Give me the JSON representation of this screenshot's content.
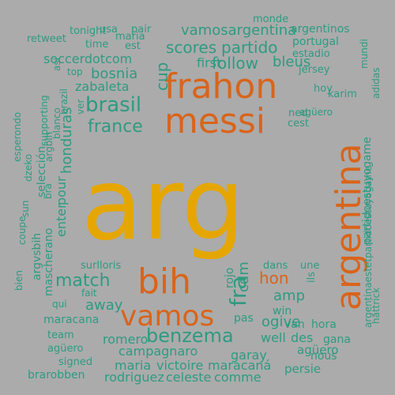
{
  "colors": {
    "background": "#ababab",
    "gold": "#e6a600",
    "orange": "#d9641b",
    "teal": "#2e9b82",
    "green": "#2f9a6a",
    "light": "#e9e9e9"
  },
  "words": [
    {
      "text": "arg",
      "color": "gold"
    },
    {
      "text": "argentina",
      "color": "orange"
    },
    {
      "text": "messi",
      "color": "orange"
    },
    {
      "text": "frahon",
      "color": "orange"
    },
    {
      "text": "bih",
      "color": "orange"
    },
    {
      "text": "vamos",
      "color": "orange"
    },
    {
      "text": "benzema",
      "color": "teal"
    },
    {
      "text": "brasil",
      "color": "teal"
    },
    {
      "text": "france",
      "color": "teal"
    },
    {
      "text": "match",
      "color": "teal"
    },
    {
      "text": "fra",
      "color": "teal"
    },
    {
      "text": "hon",
      "color": "orange"
    },
    {
      "text": "cdm",
      "color": "teal"
    },
    {
      "text": "amp",
      "color": "teal"
    },
    {
      "text": "ogive",
      "color": "teal"
    },
    {
      "text": "away",
      "color": "teal"
    },
    {
      "text": "follow",
      "color": "teal"
    },
    {
      "text": "scores",
      "color": "teal"
    },
    {
      "text": "partido",
      "color": "teal"
    },
    {
      "text": "vamosargentina",
      "color": "teal"
    },
    {
      "text": "soccerdotcom",
      "color": "teal"
    },
    {
      "text": "bosnia",
      "color": "teal"
    },
    {
      "text": "zabaleta",
      "color": "teal"
    },
    {
      "text": "cup",
      "color": "teal"
    },
    {
      "text": "first",
      "color": "teal"
    },
    {
      "text": "bleus",
      "color": "teal"
    },
    {
      "text": "honduras",
      "color": "teal"
    },
    {
      "text": "enter",
      "color": "teal"
    },
    {
      "text": "pour",
      "color": "teal"
    },
    {
      "text": "campagnaro",
      "color": "teal"
    },
    {
      "text": "garay",
      "color": "teal"
    },
    {
      "text": "romero",
      "color": "teal"
    },
    {
      "text": "maria",
      "color": "teal"
    },
    {
      "text": "victoire",
      "color": "teal"
    },
    {
      "text": "maracaná",
      "color": "teal"
    },
    {
      "text": "rodriguez",
      "color": "teal"
    },
    {
      "text": "celeste",
      "color": "teal"
    },
    {
      "text": "comme",
      "color": "teal"
    },
    {
      "text": "persie",
      "color": "teal"
    },
    {
      "text": "agüero",
      "color": "teal"
    },
    {
      "text": "nous",
      "color": "teal"
    },
    {
      "text": "well",
      "color": "teal"
    },
    {
      "text": "des",
      "color": "teal"
    },
    {
      "text": "gana",
      "color": "teal"
    },
    {
      "text": "van",
      "color": "teal"
    },
    {
      "text": "hora",
      "color": "teal"
    },
    {
      "text": "win",
      "color": "teal"
    },
    {
      "text": "pas",
      "color": "teal"
    },
    {
      "text": "rojo",
      "color": "teal"
    },
    {
      "text": "dans",
      "color": "teal"
    },
    {
      "text": "une",
      "color": "teal"
    },
    {
      "text": "ils",
      "color": "teal"
    },
    {
      "text": "surlloris",
      "color": "teal"
    },
    {
      "text": "fait",
      "color": "teal"
    },
    {
      "text": "qui",
      "color": "teal"
    },
    {
      "text": "maracana",
      "color": "teal"
    },
    {
      "text": "team",
      "color": "teal"
    },
    {
      "text": "agüero",
      "color": "teal"
    },
    {
      "text": "signed",
      "color": "teal"
    },
    {
      "text": "brarobben",
      "color": "teal"
    },
    {
      "text": "mascherano",
      "color": "teal"
    },
    {
      "text": "argvsbih",
      "color": "teal"
    },
    {
      "text": "selección",
      "color": "teal"
    },
    {
      "text": "bra",
      "color": "teal"
    },
    {
      "text": "argbih",
      "color": "teal"
    },
    {
      "text": "blanco",
      "color": "teal"
    },
    {
      "text": "supporting",
      "color": "teal"
    },
    {
      "text": "dzeko",
      "color": "teal"
    },
    {
      "text": "coupe",
      "color": "teal"
    },
    {
      "text": "sun",
      "color": "teal"
    },
    {
      "text": "esperondo",
      "color": "teal"
    },
    {
      "text": "bien",
      "color": "teal"
    },
    {
      "text": "brazil",
      "color": "teal"
    },
    {
      "text": "ver",
      "color": "teal"
    },
    {
      "text": "asi",
      "color": "teal"
    },
    {
      "text": "top",
      "color": "teal"
    },
    {
      "text": "retweet",
      "color": "teal"
    },
    {
      "text": "tonight",
      "color": "teal"
    },
    {
      "text": "time",
      "color": "teal"
    },
    {
      "text": "usa",
      "color": "teal"
    },
    {
      "text": "pair",
      "color": "teal"
    },
    {
      "text": "maria",
      "color": "teal"
    },
    {
      "text": "est",
      "color": "teal"
    },
    {
      "text": "monde",
      "color": "teal"
    },
    {
      "text": "argentinos",
      "color": "teal"
    },
    {
      "text": "portugal",
      "color": "teal"
    },
    {
      "text": "estadio",
      "color": "teal"
    },
    {
      "text": "jersey",
      "color": "teal"
    },
    {
      "text": "hoy",
      "color": "teal"
    },
    {
      "text": "karim",
      "color": "teal"
    },
    {
      "text": "ned",
      "color": "teal"
    },
    {
      "text": "cest",
      "color": "teal"
    },
    {
      "text": "mundi",
      "color": "teal"
    },
    {
      "text": "adidas",
      "color": "teal"
    },
    {
      "text": "partidoestuyogame",
      "color": "teal"
    },
    {
      "text": "argentinaestetpartidoestuyogame",
      "color": "teal"
    },
    {
      "text": "hattrick",
      "color": "teal"
    },
    {
      "text": "agüero",
      "color": "teal"
    }
  ]
}
